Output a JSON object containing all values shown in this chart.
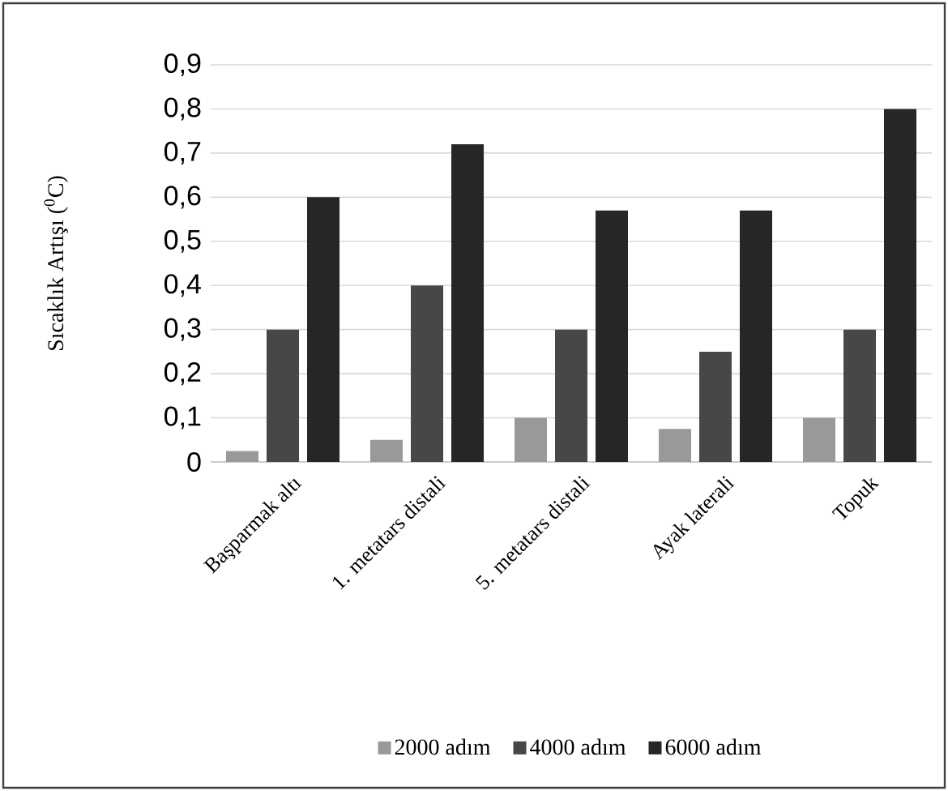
{
  "chart_data": {
    "type": "bar",
    "ylabel": "Sıcaklık Artışı ($^{0}$C)",
    "categories": [
      "Başparmak altı",
      "1. metatars distali",
      "5. metatars distali",
      "Ayak laterali",
      "Topuk"
    ],
    "series": [
      {
        "name": "2000 adım",
        "color": "#999999",
        "values": [
          0.025,
          0.05,
          0.1,
          0.075,
          0.1
        ]
      },
      {
        "name": "4000 adım",
        "color": "#474747",
        "values": [
          0.3,
          0.4,
          0.3,
          0.25,
          0.3
        ]
      },
      {
        "name": "6000 adım",
        "color": "#262626",
        "values": [
          0.6,
          0.72,
          0.57,
          0.57,
          0.8
        ]
      }
    ],
    "ylim": [
      0,
      0.9
    ],
    "yticks": [
      {
        "value": 0,
        "label": "0"
      },
      {
        "value": 0.1,
        "label": "0,1"
      },
      {
        "value": 0.2,
        "label": "0,2"
      },
      {
        "value": 0.3,
        "label": "0,3"
      },
      {
        "value": 0.4,
        "label": "0,4"
      },
      {
        "value": 0.5,
        "label": "0,5"
      },
      {
        "value": 0.6,
        "label": "0,6"
      },
      {
        "value": 0.7,
        "label": "0,7"
      },
      {
        "value": 0.8,
        "label": "0,8"
      },
      {
        "value": 0.9,
        "label": "0,9"
      }
    ],
    "grid": "y",
    "legend": "bottom"
  }
}
